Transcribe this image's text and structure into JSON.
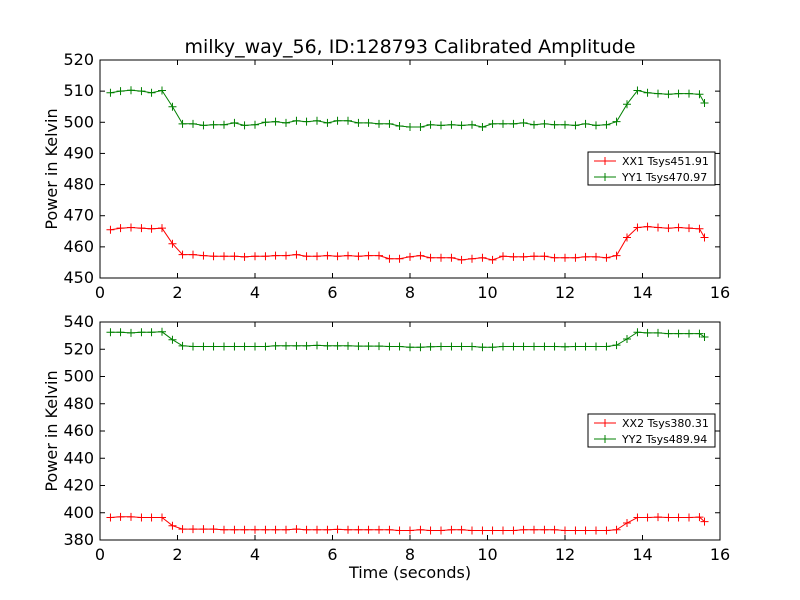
{
  "figure_title": "milky_way_56, ID:128793 Calibrated Amplitude",
  "xlabel_bottom": "Time (seconds)",
  "chart_data": [
    {
      "type": "line",
      "title": "milky_way_56, ID:128793 Calibrated Amplitude",
      "xlabel": "",
      "ylabel": "Power in Kelvin",
      "xlim": [
        0,
        16
      ],
      "ylim": [
        450,
        520
      ],
      "xticks": [
        "0",
        "2",
        "4",
        "6",
        "8",
        "10",
        "12",
        "14",
        "16"
      ],
      "yticks": [
        "450",
        "460",
        "470",
        "480",
        "490",
        "500",
        "510",
        "520"
      ],
      "legend_position": "right",
      "x": [
        0.27,
        0.53,
        0.8,
        1.07,
        1.33,
        1.6,
        1.87,
        2.13,
        2.4,
        2.67,
        2.93,
        3.2,
        3.47,
        3.73,
        4.0,
        4.27,
        4.53,
        4.8,
        5.07,
        5.33,
        5.6,
        5.87,
        6.13,
        6.4,
        6.67,
        6.93,
        7.2,
        7.47,
        7.73,
        8.0,
        8.27,
        8.53,
        8.8,
        9.07,
        9.33,
        9.6,
        9.87,
        10.13,
        10.4,
        10.67,
        10.93,
        11.2,
        11.47,
        11.73,
        12.0,
        12.27,
        12.53,
        12.8,
        13.07,
        13.33,
        13.6,
        13.87,
        14.13,
        14.4,
        14.67,
        14.93,
        15.2,
        15.47,
        15.6
      ],
      "series": [
        {
          "name": "XX1 Tsys451.91",
          "color": "#ff0000",
          "values": [
            465.5,
            466.0,
            466.2,
            466.0,
            465.8,
            466.0,
            461.0,
            457.5,
            457.5,
            457.2,
            457.0,
            457.0,
            457.0,
            456.8,
            457.0,
            457.0,
            457.2,
            457.2,
            457.5,
            457.0,
            457.0,
            457.2,
            457.0,
            457.2,
            457.0,
            457.2,
            457.2,
            456.2,
            456.2,
            456.8,
            457.2,
            456.5,
            456.5,
            456.5,
            455.8,
            456.2,
            456.5,
            455.8,
            457.0,
            456.8,
            456.8,
            457.0,
            457.0,
            456.5,
            456.5,
            456.5,
            456.8,
            456.8,
            456.5,
            457.2,
            463.0,
            466.2,
            466.5,
            466.2,
            466.0,
            466.2,
            466.0,
            465.8,
            463.0
          ]
        },
        {
          "name": "YY1 Tsys470.97",
          "color": "#008000",
          "values": [
            509.5,
            510.0,
            510.3,
            510.0,
            509.5,
            510.2,
            505.0,
            499.5,
            499.5,
            499.0,
            499.2,
            499.2,
            499.8,
            499.0,
            499.2,
            500.0,
            500.2,
            499.8,
            500.5,
            500.2,
            500.5,
            499.8,
            500.5,
            500.5,
            499.8,
            499.8,
            499.5,
            499.5,
            498.8,
            498.5,
            498.5,
            499.2,
            499.0,
            499.2,
            499.0,
            499.2,
            498.5,
            499.5,
            499.5,
            499.5,
            499.8,
            499.2,
            499.5,
            499.2,
            499.2,
            499.0,
            499.5,
            499.0,
            499.2,
            500.2,
            505.8,
            510.2,
            509.5,
            509.2,
            509.0,
            509.2,
            509.2,
            509.0,
            506.2
          ]
        }
      ]
    },
    {
      "type": "line",
      "title": "",
      "xlabel": "Time (seconds)",
      "ylabel": "Power in Kelvin",
      "xlim": [
        0,
        16
      ],
      "ylim": [
        380,
        540
      ],
      "xticks": [
        "0",
        "2",
        "4",
        "6",
        "8",
        "10",
        "12",
        "14",
        "16"
      ],
      "yticks": [
        "380",
        "400",
        "420",
        "440",
        "460",
        "480",
        "500",
        "520",
        "540"
      ],
      "legend_position": "right",
      "x": [
        0.27,
        0.53,
        0.8,
        1.07,
        1.33,
        1.6,
        1.87,
        2.13,
        2.4,
        2.67,
        2.93,
        3.2,
        3.47,
        3.73,
        4.0,
        4.27,
        4.53,
        4.8,
        5.07,
        5.33,
        5.6,
        5.87,
        6.13,
        6.4,
        6.67,
        6.93,
        7.2,
        7.47,
        7.73,
        8.0,
        8.27,
        8.53,
        8.8,
        9.07,
        9.33,
        9.6,
        9.87,
        10.13,
        10.4,
        10.67,
        10.93,
        11.2,
        11.47,
        11.73,
        12.0,
        12.27,
        12.53,
        12.8,
        13.07,
        13.33,
        13.6,
        13.87,
        14.13,
        14.4,
        14.67,
        14.93,
        15.2,
        15.47,
        15.6
      ],
      "series": [
        {
          "name": "XX2 Tsys380.31",
          "color": "#ff0000",
          "values": [
            396.5,
            397.0,
            397.0,
            396.5,
            396.5,
            396.5,
            390.5,
            388.0,
            388.0,
            388.0,
            388.0,
            387.5,
            387.5,
            387.5,
            387.5,
            387.5,
            387.5,
            387.5,
            388.0,
            387.5,
            387.5,
            387.5,
            387.8,
            387.5,
            387.5,
            387.5,
            387.5,
            387.5,
            387.0,
            387.0,
            387.5,
            387.0,
            387.0,
            387.5,
            387.5,
            387.0,
            387.0,
            387.0,
            387.0,
            387.0,
            387.5,
            387.5,
            387.5,
            387.5,
            387.0,
            387.0,
            387.0,
            387.0,
            387.0,
            387.5,
            392.5,
            396.5,
            396.5,
            396.8,
            396.5,
            396.5,
            396.5,
            396.8,
            393.5
          ]
        },
        {
          "name": "YY2 Tsys489.94",
          "color": "#008000",
          "values": [
            532.5,
            532.5,
            532.0,
            532.5,
            532.5,
            532.8,
            527.0,
            522.5,
            522.0,
            522.0,
            522.0,
            522.0,
            522.0,
            522.0,
            522.0,
            522.0,
            522.5,
            522.5,
            522.5,
            522.5,
            522.8,
            522.5,
            522.5,
            522.5,
            522.3,
            522.3,
            522.3,
            522.0,
            522.0,
            521.5,
            521.5,
            521.8,
            522.0,
            522.0,
            522.0,
            522.0,
            521.5,
            521.5,
            522.0,
            522.0,
            522.0,
            522.0,
            522.0,
            522.0,
            521.8,
            522.0,
            522.0,
            522.0,
            522.0,
            523.0,
            527.5,
            532.5,
            532.0,
            532.0,
            531.5,
            531.5,
            531.5,
            531.5,
            529.0
          ]
        }
      ]
    }
  ]
}
